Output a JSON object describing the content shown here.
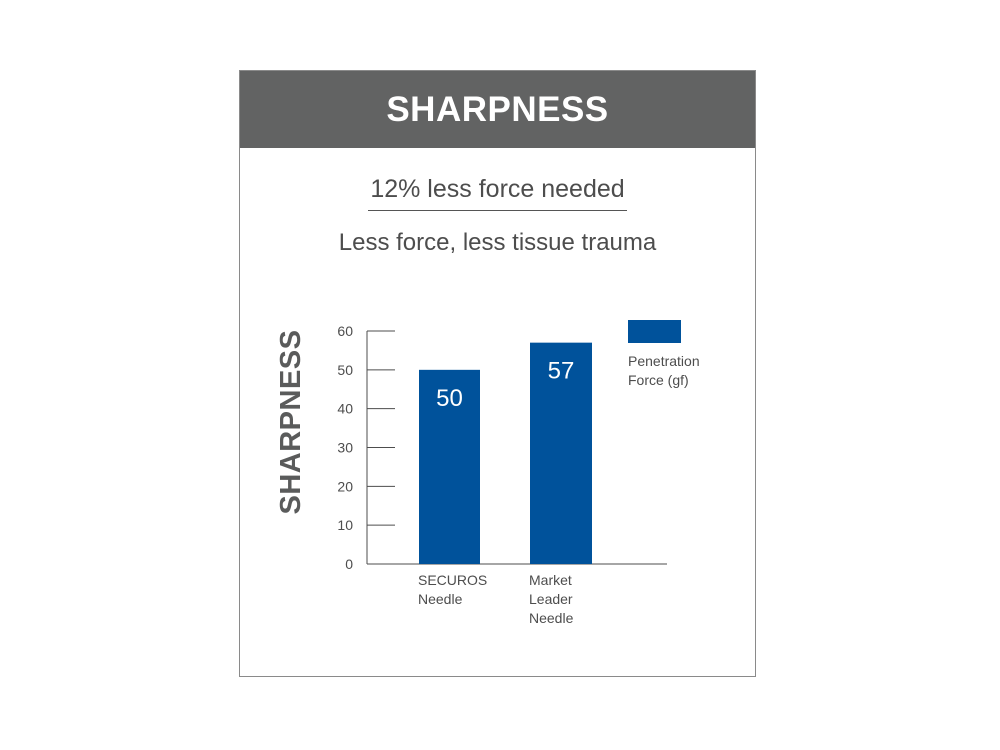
{
  "header": {
    "title": "SHARPNESS"
  },
  "headline": "12% less force needed",
  "subhead": "Less force, less tissue trauma",
  "colors": {
    "header_bg": "#626363",
    "bar": "#00529b",
    "text": "#4d4d4d"
  },
  "chart_data": {
    "type": "bar",
    "ylabel": "SHARPNESS",
    "xlabel": "",
    "ylim": [
      0,
      60
    ],
    "yticks": [
      0,
      10,
      20,
      30,
      40,
      50,
      60
    ],
    "categories": [
      [
        "SECUROS",
        "Needle"
      ],
      [
        "Market",
        "Leader",
        "Needle"
      ]
    ],
    "series": [
      {
        "name": [
          "Penetration",
          "Force (gf)"
        ],
        "values": [
          50,
          57
        ]
      }
    ],
    "data_labels": [
      "50",
      "57"
    ],
    "legend_position": "top-right",
    "grid": false
  }
}
